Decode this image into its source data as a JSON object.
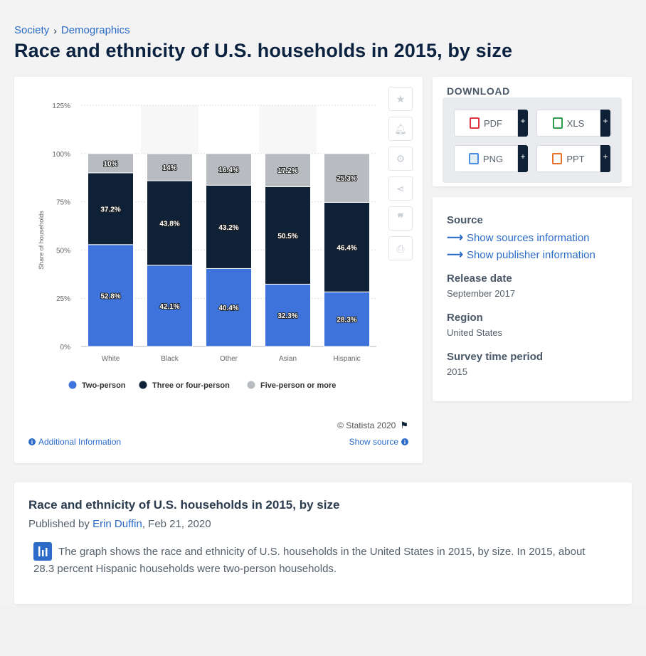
{
  "breadcrumb": {
    "items": [
      "Society",
      "Demographics"
    ],
    "separator": "›"
  },
  "page_title": "Race and ethnicity of U.S. households in 2015, by size",
  "chart_data": {
    "type": "bar",
    "stacked": true,
    "title": "",
    "categories": [
      "White",
      "Black",
      "Other",
      "Asian",
      "Hispanic"
    ],
    "series": [
      {
        "name": "Two-person",
        "values": [
          52.8,
          42.1,
          40.4,
          32.3,
          28.3
        ],
        "labels": [
          "52.8%",
          "42.1%",
          "40.4%",
          "32.3%",
          "28.3%"
        ],
        "color": "#3d73da"
      },
      {
        "name": "Three or four-person",
        "values": [
          37.2,
          43.8,
          43.2,
          50.5,
          46.4
        ],
        "labels": [
          "37.2%",
          "43.8%",
          "43.2%",
          "50.5%",
          "46.4%"
        ],
        "color": "#0f2137"
      },
      {
        "name": "Five-person or more",
        "values": [
          10,
          14,
          16.4,
          17.2,
          25.3
        ],
        "labels": [
          "10%",
          "14%",
          "16.4%",
          "17.2%",
          "25.3%"
        ],
        "color": "#b8bbbf"
      }
    ],
    "ylabel": "Share of households",
    "xlabel": "",
    "ylim": [
      0,
      125
    ],
    "yticks": [
      0,
      25,
      50,
      75,
      100,
      125
    ],
    "ytick_labels": [
      "0%",
      "25%",
      "50%",
      "75%",
      "100%",
      "125%"
    ],
    "grid": true,
    "legend_position": "bottom"
  },
  "chart_footer": {
    "credit": "© Statista 2020",
    "additional_info": "Additional Information",
    "show_source": "Show source"
  },
  "download": {
    "title": "DOWNLOAD",
    "buttons": [
      {
        "label": "PDF",
        "icon": "pdf-file-icon",
        "color": "#e0343f"
      },
      {
        "label": "XLS",
        "icon": "xls-file-icon",
        "color": "#2f9e4a"
      },
      {
        "label": "PNG",
        "icon": "png-file-icon",
        "color": "#4a8fe0"
      },
      {
        "label": "PPT",
        "icon": "ppt-file-icon",
        "color": "#e8712b"
      }
    ],
    "plus": "+"
  },
  "info": {
    "source_label": "Source",
    "show_sources": "Show sources information",
    "show_publisher": "Show publisher information",
    "release_label": "Release date",
    "release_value": "September 2017",
    "region_label": "Region",
    "region_value": "United States",
    "survey_label": "Survey time period",
    "survey_value": "2015"
  },
  "description": {
    "title": "Race and ethnicity of U.S. households in 2015, by size",
    "published_prefix": "Published by ",
    "author": "Erin Duffin",
    "date": ", Feb 21, 2020",
    "text": "The graph shows the race and ethnicity of U.S. households in the United States in 2015, by size. In 2015, about 28.3 percent Hispanic households were two-person households."
  },
  "colors": {
    "accent": "#2c6bc8",
    "dark": "#0f2137"
  }
}
